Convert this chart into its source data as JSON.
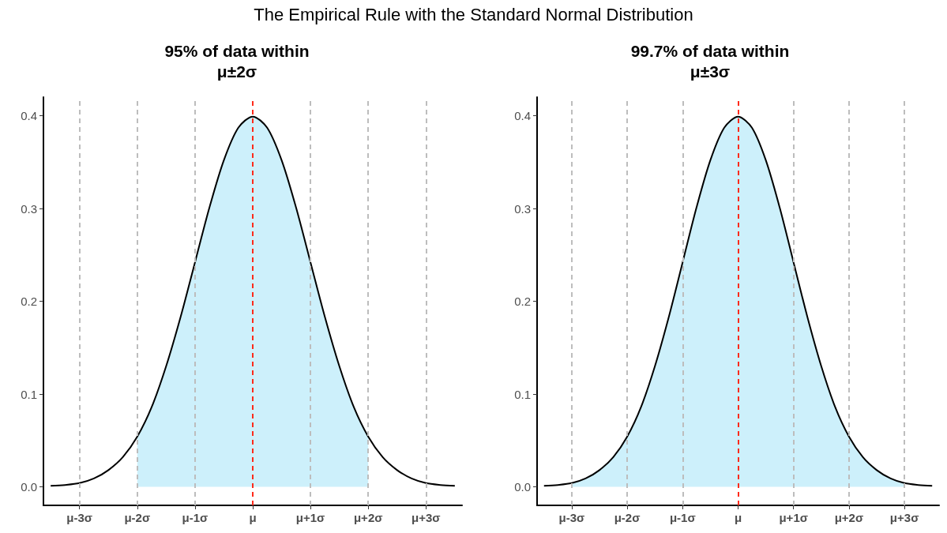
{
  "chart_data": [
    {
      "type": "line",
      "title": "95% of data within\nμ±2σ",
      "annotations": [
        "The Empirical Rule with the Standard Normal Distribution"
      ],
      "grid": false,
      "marker": "none",
      "categories": [
        null,
        null,
        "μ-3σ",
        null,
        null,
        null,
        "μ-2σ",
        null,
        null,
        null,
        "μ-1σ",
        null,
        null,
        null,
        "μ",
        null,
        null,
        null,
        "μ+1σ",
        null,
        null,
        null,
        "μ+2σ",
        null,
        null,
        null,
        "μ+3σ",
        null,
        null
      ],
      "ylim": [
        -0.02,
        0.42
      ],
      "yticks": [
        {
          "value": 0,
          "label": "0.0"
        },
        {
          "value": 0.1,
          "label": "0.1"
        },
        {
          "value": 0.2,
          "label": "0.2"
        },
        {
          "value": 0.3,
          "label": "0.3"
        },
        {
          "value": 0.4,
          "label": "0.4"
        }
      ],
      "series": [
        {
          "type": "area",
          "color": "#cdf0fb",
          "values": [
            null,
            null,
            null,
            null,
            null,
            null,
            0.054,
            0.086,
            0.13,
            0.183,
            0.242,
            0.301,
            0.352,
            0.387,
            0.399,
            0.387,
            0.352,
            0.301,
            0.242,
            0.183,
            0.13,
            0.086,
            0.054,
            null,
            null,
            null,
            null,
            null,
            null
          ]
        },
        {
          "type": "line",
          "color": "#000000",
          "line_style": "solid",
          "values": [
            0.001,
            0.002,
            0.004,
            0.009,
            0.018,
            0.032,
            0.054,
            0.086,
            0.13,
            0.183,
            0.242,
            0.301,
            0.352,
            0.387,
            0.399,
            0.387,
            0.352,
            0.301,
            0.242,
            0.183,
            0.13,
            0.086,
            0.054,
            0.032,
            0.018,
            0.009,
            0.004,
            0.002,
            0.001
          ]
        }
      ],
      "ref_lines": [
        {
          "axis": "x",
          "value": "μ-3σ",
          "color": "#bdbdbd",
          "line_style": "dashed"
        },
        {
          "axis": "x",
          "value": "μ-2σ",
          "color": "#bdbdbd",
          "line_style": "dashed"
        },
        {
          "axis": "x",
          "value": "μ-1σ",
          "color": "#bdbdbd",
          "line_style": "dashed"
        },
        {
          "axis": "x",
          "value": "μ+1σ",
          "color": "#bdbdbd",
          "line_style": "dashed"
        },
        {
          "axis": "x",
          "value": "μ+2σ",
          "color": "#bdbdbd",
          "line_style": "dashed"
        },
        {
          "axis": "x",
          "value": "μ+3σ",
          "color": "#bdbdbd",
          "line_style": "dashed"
        },
        {
          "axis": "x",
          "value": "μ",
          "color": "#ff2a1a",
          "line_style": "dashed"
        }
      ]
    },
    {
      "type": "line",
      "title": "99.7% of data within\nμ±3σ",
      "grid": false,
      "marker": "none",
      "categories": [
        null,
        null,
        "μ-3σ",
        null,
        null,
        null,
        "μ-2σ",
        null,
        null,
        null,
        "μ-1σ",
        null,
        null,
        null,
        "μ",
        null,
        null,
        null,
        "μ+1σ",
        null,
        null,
        null,
        "μ+2σ",
        null,
        null,
        null,
        "μ+3σ",
        null,
        null
      ],
      "ylim": [
        -0.02,
        0.42
      ],
      "yticks": [
        {
          "value": 0,
          "label": "0.0"
        },
        {
          "value": 0.1,
          "label": "0.1"
        },
        {
          "value": 0.2,
          "label": "0.2"
        },
        {
          "value": 0.3,
          "label": "0.3"
        },
        {
          "value": 0.4,
          "label": "0.4"
        }
      ],
      "series": [
        {
          "type": "area",
          "color": "#cdf0fb",
          "values": [
            null,
            null,
            0.004,
            0.009,
            0.018,
            0.032,
            0.054,
            0.086,
            0.13,
            0.183,
            0.242,
            0.301,
            0.352,
            0.387,
            0.399,
            0.387,
            0.352,
            0.301,
            0.242,
            0.183,
            0.13,
            0.086,
            0.054,
            0.032,
            0.018,
            0.009,
            0.004,
            null,
            null
          ]
        },
        {
          "type": "line",
          "color": "#000000",
          "line_style": "solid",
          "values": [
            0.001,
            0.002,
            0.004,
            0.009,
            0.018,
            0.032,
            0.054,
            0.086,
            0.13,
            0.183,
            0.242,
            0.301,
            0.352,
            0.387,
            0.399,
            0.387,
            0.352,
            0.301,
            0.242,
            0.183,
            0.13,
            0.086,
            0.054,
            0.032,
            0.018,
            0.009,
            0.004,
            0.002,
            0.001
          ]
        }
      ],
      "ref_lines": [
        {
          "axis": "x",
          "value": "μ-3σ",
          "color": "#bdbdbd",
          "line_style": "dashed"
        },
        {
          "axis": "x",
          "value": "μ-2σ",
          "color": "#bdbdbd",
          "line_style": "dashed"
        },
        {
          "axis": "x",
          "value": "μ-1σ",
          "color": "#bdbdbd",
          "line_style": "dashed"
        },
        {
          "axis": "x",
          "value": "μ+1σ",
          "color": "#bdbdbd",
          "line_style": "dashed"
        },
        {
          "axis": "x",
          "value": "μ+2σ",
          "color": "#bdbdbd",
          "line_style": "dashed"
        },
        {
          "axis": "x",
          "value": "μ+3σ",
          "color": "#bdbdbd",
          "line_style": "dashed"
        },
        {
          "axis": "x",
          "value": "μ",
          "color": "#ff2a1a",
          "line_style": "dashed"
        }
      ]
    }
  ]
}
